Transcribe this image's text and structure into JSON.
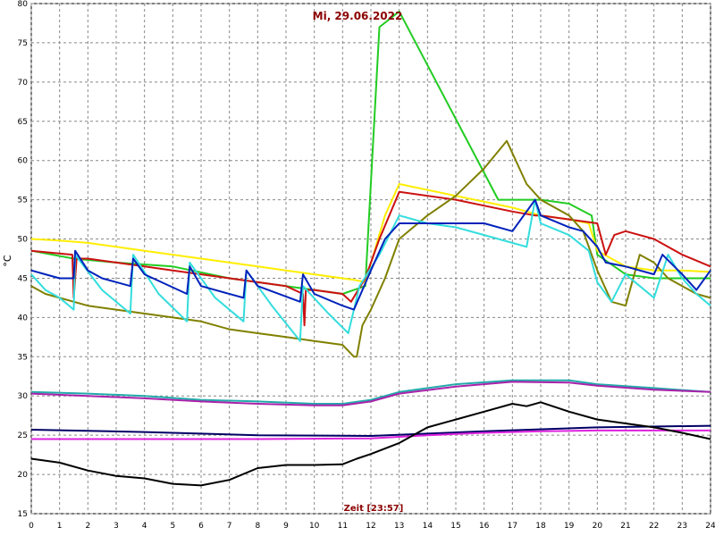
{
  "chart_data": {
    "type": "line",
    "title": "Mi, 29.06.2022",
    "xlabel": "Zeit [23:57]",
    "ylabel": "°C",
    "xlim": [
      0,
      24
    ],
    "ylim": [
      15,
      80
    ],
    "xticks": [
      "0",
      "1",
      "2",
      "3",
      "4",
      "5",
      "6",
      "7",
      "8",
      "9",
      "10",
      "11",
      "12",
      "13",
      "14",
      "15",
      "16",
      "17",
      "18",
      "19",
      "20",
      "21",
      "22",
      "23",
      "24"
    ],
    "yticks": [
      "15",
      "20",
      "25",
      "30",
      "35",
      "40",
      "45",
      "50",
      "55",
      "60",
      "65",
      "70",
      "75",
      "80"
    ],
    "grid": true,
    "legend": "none",
    "series": [
      {
        "color": "#22cc22",
        "x": [
          0,
          1.5,
          3,
          5,
          7,
          9,
          11,
          11.4,
          11.8,
          12.3,
          13,
          16.5,
          17,
          18,
          19,
          19.8,
          20,
          21,
          22,
          23,
          24
        ],
        "y": [
          48.5,
          47.5,
          47,
          46.5,
          45,
          44,
          43,
          43.5,
          44,
          77,
          79,
          55,
          55,
          55,
          54.5,
          53,
          48,
          45.5,
          45,
          45,
          45
        ]
      },
      {
        "color": "#ffee00",
        "x": [
          0,
          1,
          2,
          3,
          4,
          5,
          6,
          7,
          8,
          9,
          10,
          11,
          11.4,
          11.8,
          12.5,
          13,
          15,
          17,
          18,
          19,
          19.7,
          20,
          21,
          22,
          23,
          24
        ],
        "y": [
          50,
          49.8,
          49.5,
          49,
          48.5,
          48,
          47.5,
          47,
          46.5,
          46,
          45.5,
          45,
          44.8,
          44.5,
          53,
          57,
          55.5,
          54,
          53,
          52.5,
          52,
          48.5,
          46.5,
          46,
          46,
          45.8
        ]
      },
      {
        "color": "#cc1111",
        "x": [
          0,
          1.45,
          1.5,
          1.6,
          2,
          3,
          4,
          5,
          6,
          7,
          8,
          9,
          9.6,
          9.65,
          9.7,
          10,
          11,
          11.3,
          11.8,
          12.3,
          13,
          15,
          17,
          17.8,
          18,
          19,
          20,
          20.3,
          20.6,
          21,
          22,
          23,
          24
        ],
        "y": [
          48.5,
          48,
          42.5,
          47.5,
          47.5,
          47,
          46.5,
          46,
          45.5,
          45,
          44.5,
          44,
          43,
          39,
          43.5,
          43.5,
          43,
          42,
          45,
          50,
          56,
          55,
          53.5,
          53,
          53,
          52.5,
          52,
          48,
          50.5,
          51,
          50,
          48,
          46.5
        ]
      },
      {
        "color": "#808000",
        "x": [
          0,
          0.5,
          1,
          2,
          3,
          4,
          5,
          6,
          7,
          8,
          9,
          10,
          11,
          11.4,
          11.5,
          11.7,
          12,
          12.5,
          13,
          14,
          15,
          16,
          16.8,
          17.5,
          18,
          19,
          19.5,
          20,
          20.5,
          21,
          21.5,
          22,
          22.5,
          23,
          23.5,
          24
        ],
        "y": [
          44,
          43,
          42.5,
          41.5,
          41,
          40.5,
          40,
          39.5,
          38.5,
          38,
          37.5,
          37,
          36.5,
          35,
          35,
          39,
          41,
          45,
          50,
          53,
          55.5,
          59,
          62.5,
          57,
          55,
          53,
          51,
          46,
          42,
          41.5,
          48,
          47,
          45,
          44,
          43,
          42.5
        ]
      },
      {
        "color": "#33dddd",
        "x": [
          0,
          0.5,
          1,
          1.5,
          1.55,
          2.5,
          3.5,
          3.6,
          4.5,
          5.5,
          5.6,
          6.5,
          7.5,
          7.6,
          8.5,
          9.5,
          9.6,
          10.5,
          11.2,
          11.6,
          12.3,
          13,
          14,
          15,
          16,
          17,
          17.5,
          17.8,
          18,
          19,
          19.7,
          20,
          20.5,
          21,
          21.5,
          22,
          22.5,
          23,
          23.5,
          24
        ],
        "y": [
          45.5,
          43.5,
          42.5,
          41,
          48,
          43.5,
          40.5,
          48,
          43,
          39.5,
          47,
          42.5,
          39.5,
          46,
          41.5,
          37,
          44,
          40.5,
          38,
          44,
          48,
          53,
          52,
          51.5,
          50.5,
          49.5,
          49,
          55,
          52,
          50.5,
          48.5,
          44.5,
          42,
          45.5,
          44,
          42.5,
          48,
          45,
          43,
          41.5
        ]
      },
      {
        "color": "#0022bb",
        "x": [
          0,
          0.5,
          1,
          1.5,
          1.55,
          2,
          2.5,
          3.5,
          3.6,
          4,
          5.5,
          5.6,
          6,
          7.5,
          7.6,
          8,
          9.5,
          9.6,
          10,
          11,
          11.4,
          12,
          12.5,
          13,
          14,
          15,
          16,
          17,
          17.8,
          18,
          19,
          19.5,
          20,
          20.3,
          21,
          22,
          22.3,
          23,
          23.5,
          24
        ],
        "y": [
          46,
          45.5,
          45,
          45,
          48.5,
          46,
          45,
          44,
          47.5,
          45.5,
          43,
          46.5,
          44,
          42.5,
          46,
          44,
          42,
          45.5,
          43,
          41.5,
          41,
          46,
          50,
          52,
          52,
          52,
          52,
          51,
          55,
          53,
          51.5,
          51,
          49,
          47,
          46.5,
          45.5,
          48,
          45.5,
          43.5,
          46
        ]
      },
      {
        "color": "#22aaaa",
        "x": [
          0,
          2,
          4,
          6,
          8,
          10,
          11,
          12,
          13,
          15,
          17,
          19,
          20,
          22,
          24
        ],
        "y": [
          30.5,
          30.3,
          30,
          29.5,
          29.3,
          29,
          29,
          29.5,
          30.5,
          31.5,
          32,
          32,
          31.5,
          31,
          30.5
        ]
      },
      {
        "color": "#aa22aa",
        "x": [
          0,
          2,
          4,
          6,
          8,
          10,
          11,
          12,
          13,
          15,
          17,
          19,
          20,
          22,
          24
        ],
        "y": [
          30.3,
          30,
          29.7,
          29.3,
          29,
          28.8,
          28.8,
          29.3,
          30.3,
          31.2,
          31.8,
          31.7,
          31.3,
          30.8,
          30.5
        ]
      },
      {
        "color": "#000066",
        "x": [
          0,
          4,
          8,
          12,
          16,
          20,
          24
        ],
        "y": [
          25.7,
          25.4,
          25,
          24.9,
          25.5,
          26,
          26.2
        ]
      },
      {
        "color": "#dd22dd",
        "x": [
          0,
          4,
          8,
          12,
          14,
          16,
          18,
          20,
          22,
          24
        ],
        "y": [
          24.5,
          24.5,
          24.5,
          24.6,
          25,
          25.3,
          25.5,
          25.6,
          25.6,
          25.6
        ]
      },
      {
        "color": "#000000",
        "x": [
          0,
          1,
          2,
          3,
          4,
          5,
          6,
          7,
          8,
          9,
          10,
          11,
          11.5,
          12,
          13,
          14,
          15,
          16,
          17,
          17.5,
          18,
          19,
          20,
          21,
          22,
          23,
          24
        ],
        "y": [
          22,
          21.5,
          20.5,
          19.8,
          19.5,
          18.8,
          18.6,
          19.3,
          20.8,
          21.2,
          21.2,
          21.3,
          22,
          22.6,
          24,
          26,
          27,
          28,
          29,
          28.7,
          29.2,
          28,
          27,
          26.5,
          26,
          25.3,
          24.5
        ]
      }
    ]
  }
}
